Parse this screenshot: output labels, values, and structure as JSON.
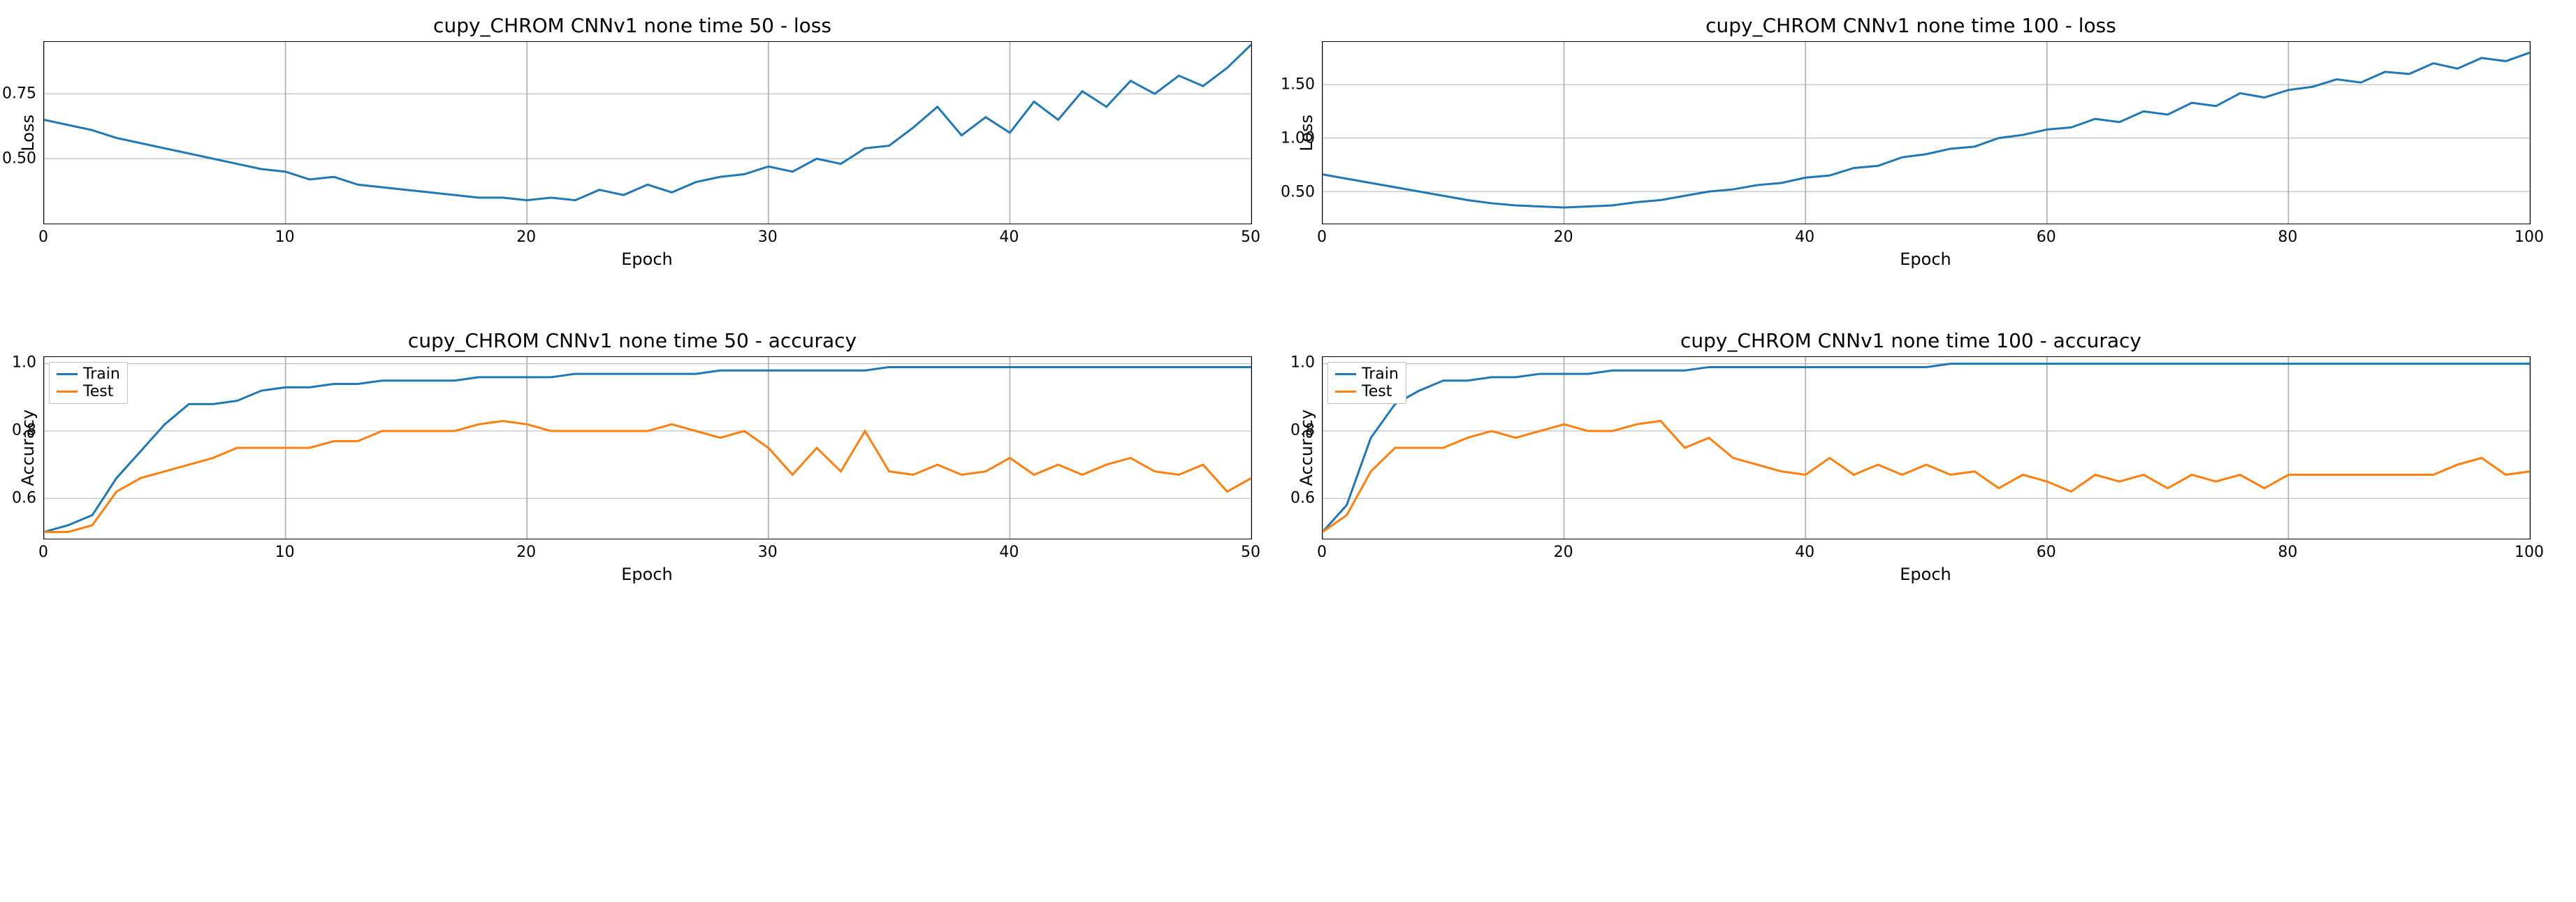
{
  "colors": {
    "train": "#1f77b4",
    "test": "#ff7f0e",
    "grid": "#b0b0b0",
    "border": "#000000",
    "text": "#000000",
    "background": "#ffffff"
  },
  "typography": {
    "title_fontsize": 28,
    "label_fontsize": 24,
    "tick_fontsize": 22,
    "legend_fontsize": 22
  },
  "line_width": 3,
  "panels": [
    {
      "id": "loss50",
      "title": "cupy_CHROM CNNv1 none time 50 - loss",
      "xlabel": "Epoch",
      "ylabel": "Loss",
      "xlim": [
        0,
        50
      ],
      "ylim": [
        0.25,
        0.95
      ],
      "xticks": [
        0,
        10,
        20,
        30,
        40,
        50
      ],
      "yticks": [
        0.5,
        0.75
      ],
      "legend": null,
      "series": [
        {
          "name": "loss",
          "color": "#1f77b4",
          "x": [
            0,
            1,
            2,
            3,
            4,
            5,
            6,
            7,
            8,
            9,
            10,
            11,
            12,
            13,
            14,
            15,
            16,
            17,
            18,
            19,
            20,
            21,
            22,
            23,
            24,
            25,
            26,
            27,
            28,
            29,
            30,
            31,
            32,
            33,
            34,
            35,
            36,
            37,
            38,
            39,
            40,
            41,
            42,
            43,
            44,
            45,
            46,
            47,
            48,
            49,
            50
          ],
          "y": [
            0.65,
            0.63,
            0.61,
            0.58,
            0.56,
            0.54,
            0.52,
            0.5,
            0.48,
            0.46,
            0.45,
            0.42,
            0.43,
            0.4,
            0.39,
            0.38,
            0.37,
            0.36,
            0.35,
            0.35,
            0.34,
            0.35,
            0.34,
            0.38,
            0.36,
            0.4,
            0.37,
            0.41,
            0.43,
            0.44,
            0.47,
            0.45,
            0.5,
            0.48,
            0.54,
            0.55,
            0.62,
            0.7,
            0.59,
            0.66,
            0.6,
            0.72,
            0.65,
            0.76,
            0.7,
            0.8,
            0.75,
            0.82,
            0.78,
            0.85,
            0.94
          ]
        }
      ]
    },
    {
      "id": "loss100",
      "title": "cupy_CHROM CNNv1 none time 100 - loss",
      "xlabel": "Epoch",
      "ylabel": "Loss",
      "xlim": [
        0,
        100
      ],
      "ylim": [
        0.2,
        1.9
      ],
      "xticks": [
        0,
        20,
        40,
        60,
        80,
        100
      ],
      "yticks": [
        0.5,
        1.0,
        1.5
      ],
      "legend": null,
      "series": [
        {
          "name": "loss",
          "color": "#1f77b4",
          "x": [
            0,
            2,
            4,
            6,
            8,
            10,
            12,
            14,
            16,
            18,
            20,
            22,
            24,
            26,
            28,
            30,
            32,
            34,
            36,
            38,
            40,
            42,
            44,
            46,
            48,
            50,
            52,
            54,
            56,
            58,
            60,
            62,
            64,
            66,
            68,
            70,
            72,
            74,
            76,
            78,
            80,
            82,
            84,
            86,
            88,
            90,
            92,
            94,
            96,
            98,
            100
          ],
          "y": [
            0.66,
            0.62,
            0.58,
            0.54,
            0.5,
            0.46,
            0.42,
            0.39,
            0.37,
            0.36,
            0.35,
            0.36,
            0.37,
            0.4,
            0.42,
            0.46,
            0.5,
            0.52,
            0.56,
            0.58,
            0.63,
            0.65,
            0.72,
            0.74,
            0.82,
            0.85,
            0.9,
            0.92,
            1.0,
            1.03,
            1.08,
            1.1,
            1.18,
            1.15,
            1.25,
            1.22,
            1.33,
            1.3,
            1.42,
            1.38,
            1.45,
            1.48,
            1.55,
            1.52,
            1.62,
            1.6,
            1.7,
            1.65,
            1.75,
            1.72,
            1.8
          ]
        }
      ]
    },
    {
      "id": "acc50",
      "title": "cupy_CHROM CNNv1 none time 50 - accuracy",
      "xlabel": "Epoch",
      "ylabel": "Accuracy",
      "xlim": [
        0,
        50
      ],
      "ylim": [
        0.48,
        1.02
      ],
      "xticks": [
        0,
        10,
        20,
        30,
        40,
        50
      ],
      "yticks": [
        0.6,
        0.8,
        1.0
      ],
      "legend": {
        "position": "upper-left",
        "items": [
          {
            "label": "Train",
            "color": "#1f77b4"
          },
          {
            "label": "Test",
            "color": "#ff7f0e"
          }
        ]
      },
      "series": [
        {
          "name": "Train",
          "color": "#1f77b4",
          "x": [
            0,
            1,
            2,
            3,
            4,
            5,
            6,
            7,
            8,
            9,
            10,
            11,
            12,
            13,
            14,
            15,
            16,
            17,
            18,
            19,
            20,
            21,
            22,
            23,
            24,
            25,
            26,
            27,
            28,
            29,
            30,
            31,
            32,
            33,
            34,
            35,
            36,
            37,
            38,
            39,
            40,
            41,
            42,
            43,
            44,
            45,
            46,
            47,
            48,
            49,
            50
          ],
          "y": [
            0.5,
            0.52,
            0.55,
            0.66,
            0.74,
            0.82,
            0.88,
            0.88,
            0.89,
            0.92,
            0.93,
            0.93,
            0.94,
            0.94,
            0.95,
            0.95,
            0.95,
            0.95,
            0.96,
            0.96,
            0.96,
            0.96,
            0.97,
            0.97,
            0.97,
            0.97,
            0.97,
            0.97,
            0.98,
            0.98,
            0.98,
            0.98,
            0.98,
            0.98,
            0.98,
            0.99,
            0.99,
            0.99,
            0.99,
            0.99,
            0.99,
            0.99,
            0.99,
            0.99,
            0.99,
            0.99,
            0.99,
            0.99,
            0.99,
            0.99,
            0.99
          ]
        },
        {
          "name": "Test",
          "color": "#ff7f0e",
          "x": [
            0,
            1,
            2,
            3,
            4,
            5,
            6,
            7,
            8,
            9,
            10,
            11,
            12,
            13,
            14,
            15,
            16,
            17,
            18,
            19,
            20,
            21,
            22,
            23,
            24,
            25,
            26,
            27,
            28,
            29,
            30,
            31,
            32,
            33,
            34,
            35,
            36,
            37,
            38,
            39,
            40,
            41,
            42,
            43,
            44,
            45,
            46,
            47,
            48,
            49,
            50
          ],
          "y": [
            0.5,
            0.5,
            0.52,
            0.62,
            0.66,
            0.68,
            0.7,
            0.72,
            0.75,
            0.75,
            0.75,
            0.75,
            0.77,
            0.77,
            0.8,
            0.8,
            0.8,
            0.8,
            0.82,
            0.83,
            0.82,
            0.8,
            0.8,
            0.8,
            0.8,
            0.8,
            0.82,
            0.8,
            0.78,
            0.8,
            0.75,
            0.67,
            0.75,
            0.68,
            0.8,
            0.68,
            0.67,
            0.7,
            0.67,
            0.68,
            0.72,
            0.67,
            0.7,
            0.67,
            0.7,
            0.72,
            0.68,
            0.67,
            0.7,
            0.62,
            0.66
          ]
        }
      ]
    },
    {
      "id": "acc100",
      "title": "cupy_CHROM CNNv1 none time 100 - accuracy",
      "xlabel": "Epoch",
      "ylabel": "Accuracy",
      "xlim": [
        0,
        100
      ],
      "ylim": [
        0.48,
        1.02
      ],
      "xticks": [
        0,
        20,
        40,
        60,
        80,
        100
      ],
      "yticks": [
        0.6,
        0.8,
        1.0
      ],
      "legend": {
        "position": "upper-left",
        "items": [
          {
            "label": "Train",
            "color": "#1f77b4"
          },
          {
            "label": "Test",
            "color": "#ff7f0e"
          }
        ]
      },
      "series": [
        {
          "name": "Train",
          "color": "#1f77b4",
          "x": [
            0,
            2,
            4,
            6,
            8,
            10,
            12,
            14,
            16,
            18,
            20,
            22,
            24,
            26,
            28,
            30,
            32,
            34,
            36,
            38,
            40,
            42,
            44,
            46,
            48,
            50,
            52,
            54,
            56,
            58,
            60,
            62,
            64,
            66,
            68,
            70,
            72,
            74,
            76,
            78,
            80,
            82,
            84,
            86,
            88,
            90,
            92,
            94,
            96,
            98,
            100
          ],
          "y": [
            0.5,
            0.58,
            0.78,
            0.88,
            0.92,
            0.95,
            0.95,
            0.96,
            0.96,
            0.97,
            0.97,
            0.97,
            0.98,
            0.98,
            0.98,
            0.98,
            0.99,
            0.99,
            0.99,
            0.99,
            0.99,
            0.99,
            0.99,
            0.99,
            0.99,
            0.99,
            1.0,
            1.0,
            1.0,
            1.0,
            1.0,
            1.0,
            1.0,
            1.0,
            1.0,
            1.0,
            1.0,
            1.0,
            1.0,
            1.0,
            1.0,
            1.0,
            1.0,
            1.0,
            1.0,
            1.0,
            1.0,
            1.0,
            1.0,
            1.0,
            1.0
          ]
        },
        {
          "name": "Test",
          "color": "#ff7f0e",
          "x": [
            0,
            2,
            4,
            6,
            8,
            10,
            12,
            14,
            16,
            18,
            20,
            22,
            24,
            26,
            28,
            30,
            32,
            34,
            36,
            38,
            40,
            42,
            44,
            46,
            48,
            50,
            52,
            54,
            56,
            58,
            60,
            62,
            64,
            66,
            68,
            70,
            72,
            74,
            76,
            78,
            80,
            82,
            84,
            86,
            88,
            90,
            92,
            94,
            96,
            98,
            100
          ],
          "y": [
            0.5,
            0.55,
            0.68,
            0.75,
            0.75,
            0.75,
            0.78,
            0.8,
            0.78,
            0.8,
            0.82,
            0.8,
            0.8,
            0.82,
            0.83,
            0.75,
            0.78,
            0.72,
            0.7,
            0.68,
            0.67,
            0.72,
            0.67,
            0.7,
            0.67,
            0.7,
            0.67,
            0.68,
            0.63,
            0.67,
            0.65,
            0.62,
            0.67,
            0.65,
            0.67,
            0.63,
            0.67,
            0.65,
            0.67,
            0.63,
            0.67,
            0.67,
            0.67,
            0.67,
            0.67,
            0.67,
            0.67,
            0.7,
            0.72,
            0.67,
            0.68
          ]
        }
      ]
    }
  ]
}
